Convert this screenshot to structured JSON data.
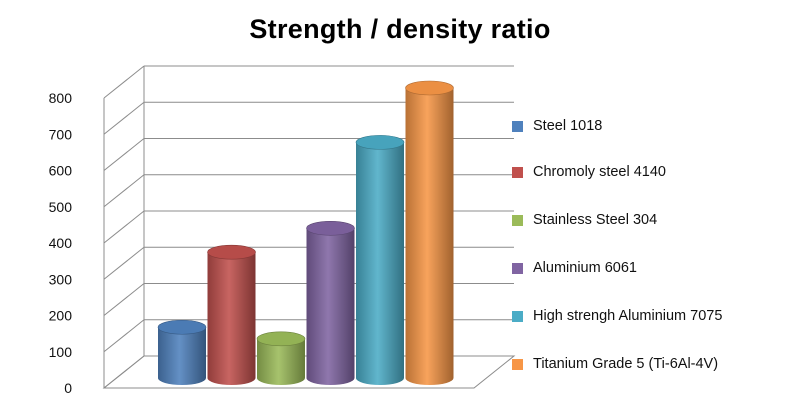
{
  "chart_data": {
    "type": "bar",
    "title": "Strength / density ratio",
    "xlabel": "",
    "ylabel": "",
    "ylim": [
      0,
      800
    ],
    "yticks": [
      0,
      100,
      200,
      300,
      400,
      500,
      600,
      700,
      800
    ],
    "grid": true,
    "legend_position": "right",
    "style": "3d-cylinder",
    "series": [
      {
        "name": "Steel 1018",
        "value": 140,
        "color": "#4F81BD"
      },
      {
        "name": "Chromoly steel 4140",
        "value": 347,
        "color": "#C0504D"
      },
      {
        "name": "Stainless Steel 304",
        "value": 108,
        "color": "#9BBB59"
      },
      {
        "name": "Aluminium 6061",
        "value": 413,
        "color": "#8064A2"
      },
      {
        "name": "High strengh Aluminium 7075",
        "value": 650,
        "color": "#4BACC6"
      },
      {
        "name": "Titanium Grade 5 (Ti-6Al-4V)",
        "value": 800,
        "color": "#F79646"
      }
    ]
  }
}
